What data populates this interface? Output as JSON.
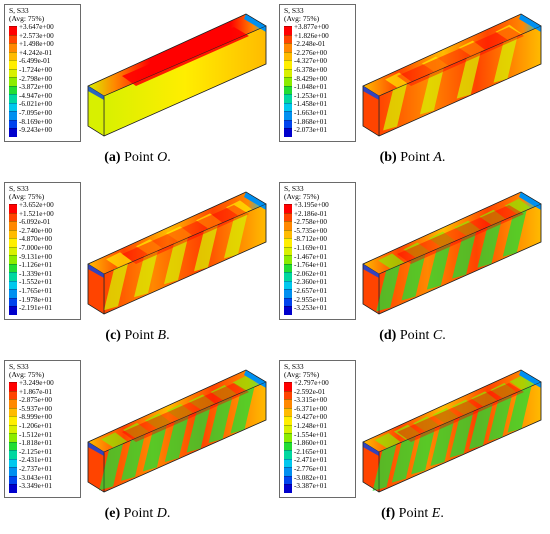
{
  "colors": [
    "#ff0000",
    "#ff4400",
    "#ff8800",
    "#ffbb00",
    "#ffee00",
    "#d8f000",
    "#8cec00",
    "#22dd33",
    "#00d7a0",
    "#00c8ee",
    "#0090f0",
    "#0044ee",
    "#0000cc"
  ],
  "panels": [
    {
      "label": "(a)",
      "point_word": "Point",
      "point_letter": "O",
      "end": ".",
      "legend_title": "S, S33",
      "legend_subtitle": "(Avg: 75%)",
      "values": [
        "+3.647e+00",
        "+2.573e+00",
        "+1.498e+00",
        "+4.242e-01",
        "-6.499e-01",
        "-1.724e+00",
        "-2.798e+00",
        "-3.872e+00",
        "-4.947e+00",
        "-6.021e+00",
        "-7.095e+00",
        "-8.169e+00",
        "-9.243e+00"
      ]
    },
    {
      "label": "(b)",
      "point_word": "Point",
      "point_letter": "A",
      "end": ".",
      "legend_title": "S, S33",
      "legend_subtitle": "(Avg: 75%)",
      "values": [
        "+3.877e+00",
        "+1.826e+00",
        "-2.248e-01",
        "-2.276e+00",
        "-4.327e+00",
        "-6.378e+00",
        "-8.429e+00",
        "-1.048e+01",
        "-1.253e+01",
        "-1.458e+01",
        "-1.663e+01",
        "-1.868e+01",
        "-2.073e+01"
      ]
    },
    {
      "label": "(c)",
      "point_word": "Point",
      "point_letter": "B",
      "end": ".",
      "legend_title": "S, S33",
      "legend_subtitle": "(Avg: 75%)",
      "values": [
        "+3.652e+00",
        "+1.521e+00",
        "-6.092e-01",
        "-2.740e+00",
        "-4.870e+00",
        "-7.000e+00",
        "-9.131e+00",
        "-1.126e+01",
        "-1.339e+01",
        "-1.552e+01",
        "-1.765e+01",
        "-1.978e+01",
        "-2.191e+01"
      ]
    },
    {
      "label": "(d)",
      "point_word": "Point",
      "point_letter": "C",
      "end": ".",
      "legend_title": "S, S33",
      "legend_subtitle": "(Avg: 75%)",
      "values": [
        "+3.195e+00",
        "+2.186e-01",
        "-2.758e+00",
        "-5.735e+00",
        "-8.712e+00",
        "-1.169e+01",
        "-1.467e+01",
        "-1.764e+01",
        "-2.062e+01",
        "-2.360e+01",
        "-2.657e+01",
        "-2.955e+01",
        "-3.253e+01"
      ]
    },
    {
      "label": "(e)",
      "point_word": "Point",
      "point_letter": "D",
      "end": ".",
      "legend_title": "S, S33",
      "legend_subtitle": "(Avg: 75%)",
      "values": [
        "+3.249e+00",
        "+1.867e-01",
        "-2.875e+00",
        "-5.937e+00",
        "-8.999e+00",
        "-1.206e+01",
        "-1.512e+01",
        "-1.818e+01",
        "-2.125e+01",
        "-2.431e+01",
        "-2.737e+01",
        "-3.043e+01",
        "-3.349e+01"
      ]
    },
    {
      "label": "(f)",
      "point_word": "Point",
      "point_letter": "E",
      "end": ".",
      "legend_title": "S, S33",
      "legend_subtitle": "(Avg: 75%)",
      "values": [
        "+2.797e+00",
        "-2.592e-01",
        "-3.315e+00",
        "-6.371e+00",
        "-9.427e+00",
        "-1.248e+01",
        "-1.554e+01",
        "-1.860e+01",
        "-2.165e+01",
        "-2.471e+01",
        "-2.776e+01",
        "-3.082e+01",
        "-3.387e+01"
      ]
    }
  ]
}
